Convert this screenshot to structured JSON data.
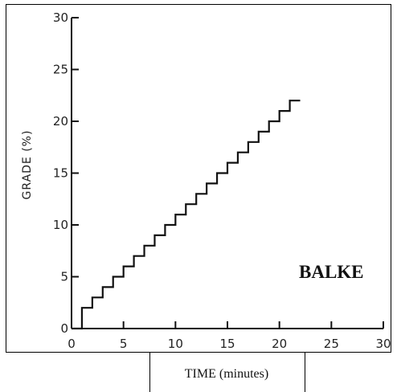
{
  "chart_data": {
    "type": "line",
    "step": true,
    "ylabel": "GRADE (%)",
    "xlabel": "TIME (minutes)",
    "annotation": "BALKE",
    "xlim": [
      0,
      30
    ],
    "ylim": [
      0,
      30
    ],
    "xticks": [
      0,
      5,
      10,
      15,
      20,
      25,
      30
    ],
    "yticks": [
      0,
      5,
      10,
      15,
      20,
      25,
      30
    ],
    "grid": false,
    "series": [
      {
        "x": [
          0,
          1,
          1,
          2,
          2,
          3,
          3,
          4,
          4,
          5,
          5,
          6,
          6,
          7,
          7,
          8,
          8,
          9,
          9,
          10,
          10,
          11,
          11,
          12,
          12,
          13,
          13,
          14,
          14,
          15,
          15,
          16,
          16,
          17,
          17,
          18,
          18,
          19,
          19,
          20,
          20,
          21,
          21,
          22
        ],
        "y": [
          0,
          0,
          2,
          2,
          3,
          3,
          4,
          4,
          5,
          5,
          6,
          6,
          7,
          7,
          8,
          8,
          9,
          9,
          10,
          10,
          11,
          11,
          12,
          12,
          13,
          13,
          14,
          14,
          15,
          15,
          16,
          16,
          17,
          17,
          18,
          18,
          19,
          19,
          20,
          20,
          21,
          21,
          22,
          22
        ]
      }
    ]
  }
}
